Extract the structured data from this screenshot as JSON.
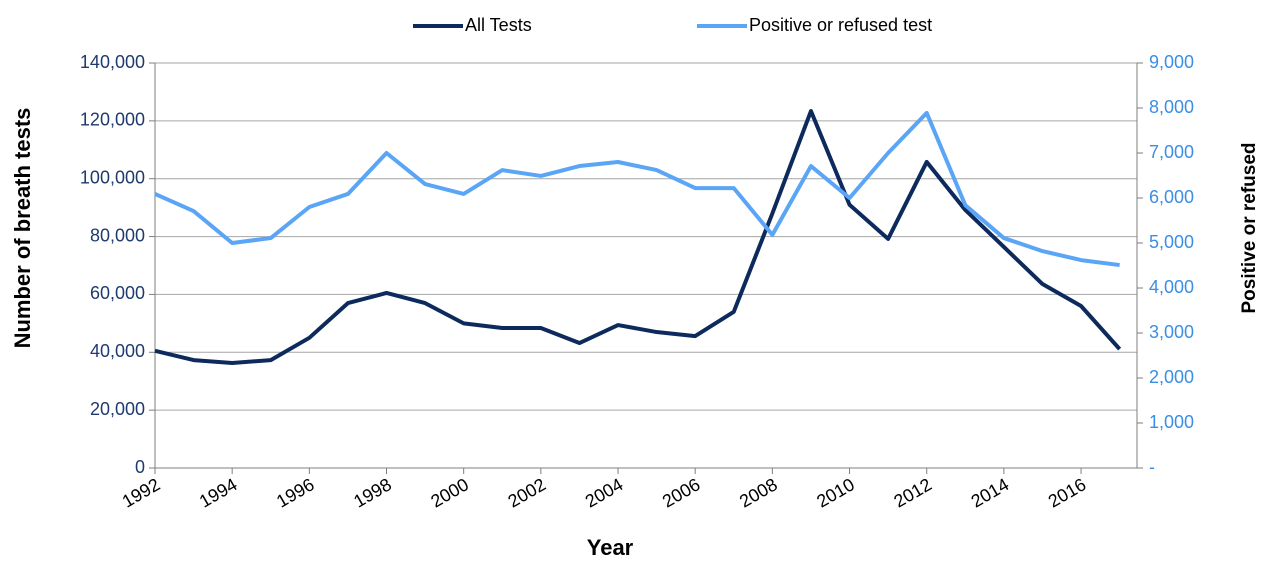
{
  "chart_data": {
    "type": "line",
    "x_label": "Year",
    "y_label": "Number of breath tests",
    "y2_label": "Positive  or refused",
    "x": [
      1992,
      1993,
      1994,
      1995,
      1996,
      1997,
      1998,
      1999,
      2000,
      2001,
      2002,
      2003,
      2004,
      2005,
      2006,
      2007,
      2008,
      2009,
      2010,
      2011,
      2012,
      2013,
      2014,
      2015,
      2016,
      2017
    ],
    "xlim": [
      1992,
      2017.45
    ],
    "xticks": [
      1992,
      1994,
      1996,
      1998,
      2000,
      2002,
      2004,
      2006,
      2008,
      2010,
      2012,
      2014,
      2016
    ],
    "ylim": [
      0,
      140000
    ],
    "yticks": [
      0,
      {
        "value": 20000,
        "label": "20,000"
      },
      {
        "value": 40000,
        "label": "40,000"
      },
      {
        "value": 60000,
        "label": "60,000"
      },
      {
        "value": 80000,
        "label": "80,000"
      },
      {
        "value": 100000,
        "label": "100,000"
      },
      {
        "value": 120000,
        "label": "120,000"
      },
      {
        "value": 140000,
        "label": "140,000"
      }
    ],
    "y2lim": [
      0,
      9000
    ],
    "y2ticks": [
      {
        "value": 0,
        "label": "-"
      },
      {
        "value": 1000,
        "label": "1,000"
      },
      {
        "value": 2000,
        "label": "2,000"
      },
      {
        "value": 3000,
        "label": "3,000"
      },
      {
        "value": 4000,
        "label": "4,000"
      },
      {
        "value": 5000,
        "label": "5,000"
      },
      {
        "value": 6000,
        "label": "6,000"
      },
      {
        "value": 7000,
        "label": "7,000"
      },
      {
        "value": 8000,
        "label": "8,000"
      },
      {
        "value": 9000,
        "label": "9,000"
      }
    ],
    "grid": true,
    "legend": "top",
    "series": [
      {
        "name": "All Tests",
        "color": "#0d2a5c",
        "values": [
          40500,
          37300,
          36300,
          37300,
          45000,
          57000,
          60500,
          57000,
          50000,
          48400,
          48400,
          43200,
          49400,
          47000,
          45600,
          54000,
          88000,
          123400,
          91000,
          79200,
          105800,
          89200,
          76400,
          63600,
          56000,
          41100
        ]
      },
      {
        "name": "Positive or refused test",
        "color": "#5aa5f5",
        "axis": "y2",
        "values": [
          6090,
          5710,
          5000,
          5110,
          5800,
          6090,
          7000,
          6310,
          6090,
          6620,
          6490,
          6710,
          6800,
          6620,
          6220,
          6220,
          5180,
          6710,
          6000,
          7000,
          7890,
          5840,
          5110,
          4820,
          4620,
          4510
        ]
      }
    ]
  }
}
